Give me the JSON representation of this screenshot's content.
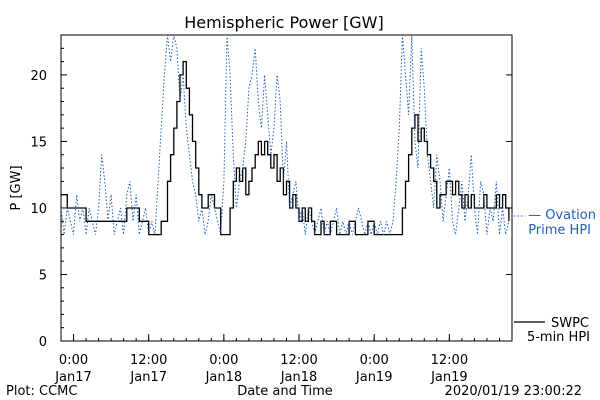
{
  "chart_data": {
    "type": "line",
    "title": "Hemispheric Power [GW]",
    "xlabel": "Date and Time",
    "ylabel": "P [GW]",
    "ylim": [
      0,
      23
    ],
    "yticks": [
      0,
      5,
      10,
      15,
      20
    ],
    "xlim_hours": [
      -2,
      70
    ],
    "xticks": [
      {
        "hour": 0,
        "line1": "0:00",
        "line2": "Jan17"
      },
      {
        "hour": 12,
        "line1": "12:00",
        "line2": "Jan17"
      },
      {
        "hour": 24,
        "line1": "0:00",
        "line2": "Jan18"
      },
      {
        "hour": 36,
        "line1": "12:00",
        "line2": "Jan18"
      },
      {
        "hour": 48,
        "line1": "0:00",
        "line2": "Jan19"
      },
      {
        "hour": 60,
        "line1": "12:00",
        "line2": "Jan19"
      }
    ],
    "grid": false,
    "series": [
      {
        "name": "SWPC 5-min HPI",
        "legend_line1": "SWPC",
        "legend_line2": "5-min HPI",
        "color": "#000000",
        "style": "solid",
        "points": [
          [
            -2,
            11
          ],
          [
            -1.3,
            11
          ],
          [
            -1,
            10
          ],
          [
            0,
            10
          ],
          [
            1,
            10
          ],
          [
            2,
            9
          ],
          [
            3,
            9
          ],
          [
            4,
            9
          ],
          [
            5,
            9
          ],
          [
            6,
            9
          ],
          [
            7,
            9
          ],
          [
            8,
            9
          ],
          [
            8.5,
            10
          ],
          [
            9.5,
            10
          ],
          [
            10.5,
            9
          ],
          [
            11,
            9
          ],
          [
            12,
            8
          ],
          [
            13.5,
            8
          ],
          [
            14,
            9
          ],
          [
            15,
            12
          ],
          [
            15.5,
            14
          ],
          [
            16,
            16
          ],
          [
            16.5,
            18
          ],
          [
            17,
            20
          ],
          [
            17.5,
            21
          ],
          [
            18,
            19
          ],
          [
            18.5,
            17
          ],
          [
            19,
            15
          ],
          [
            19.5,
            13
          ],
          [
            20,
            11
          ],
          [
            20.5,
            10
          ],
          [
            21,
            10
          ],
          [
            21.5,
            11
          ],
          [
            22.5,
            10
          ],
          [
            23.5,
            8
          ],
          [
            24,
            8
          ],
          [
            24.5,
            8
          ],
          [
            25,
            10
          ],
          [
            25.5,
            12
          ],
          [
            26,
            13
          ],
          [
            26.5,
            12
          ],
          [
            27,
            13
          ],
          [
            27.5,
            11
          ],
          [
            28,
            12
          ],
          [
            28.5,
            13
          ],
          [
            29,
            14
          ],
          [
            29.5,
            15
          ],
          [
            30,
            14
          ],
          [
            30.5,
            15
          ],
          [
            31,
            14
          ],
          [
            31.5,
            13
          ],
          [
            32,
            14
          ],
          [
            32.5,
            12
          ],
          [
            33,
            13
          ],
          [
            33.5,
            11
          ],
          [
            34,
            12
          ],
          [
            34.5,
            10
          ],
          [
            35,
            11
          ],
          [
            35.5,
            10
          ],
          [
            36,
            9
          ],
          [
            36.5,
            10
          ],
          [
            37,
            9
          ],
          [
            37.5,
            10
          ],
          [
            38,
            9
          ],
          [
            38.5,
            8
          ],
          [
            39,
            8
          ],
          [
            39.5,
            9
          ],
          [
            40,
            8
          ],
          [
            41,
            9
          ],
          [
            41.5,
            9
          ],
          [
            42,
            8
          ],
          [
            43,
            8
          ],
          [
            44,
            9
          ],
          [
            45,
            8
          ],
          [
            46,
            8
          ],
          [
            47,
            9
          ],
          [
            48,
            8
          ],
          [
            49,
            8
          ],
          [
            50,
            8
          ],
          [
            51,
            8
          ],
          [
            52,
            8
          ],
          [
            52.5,
            10
          ],
          [
            53,
            12
          ],
          [
            53.5,
            14
          ],
          [
            54,
            16
          ],
          [
            54.5,
            17
          ],
          [
            55,
            15
          ],
          [
            55.5,
            16
          ],
          [
            56,
            15
          ],
          [
            56.5,
            14
          ],
          [
            57,
            13
          ],
          [
            57.5,
            12
          ],
          [
            58,
            10
          ],
          [
            58.5,
            11
          ],
          [
            59,
            11
          ],
          [
            59.5,
            12
          ],
          [
            60,
            12
          ],
          [
            60.5,
            11
          ],
          [
            61,
            12
          ],
          [
            61.5,
            11
          ],
          [
            62,
            10
          ],
          [
            62.5,
            11
          ],
          [
            63,
            10
          ],
          [
            63.5,
            11
          ],
          [
            64,
            10
          ],
          [
            65,
            10
          ],
          [
            65.5,
            11
          ],
          [
            66,
            10
          ],
          [
            66.5,
            10
          ],
          [
            67,
            10
          ],
          [
            67.5,
            11
          ],
          [
            68,
            10
          ],
          [
            68.5,
            11
          ],
          [
            69,
            10
          ],
          [
            69.5,
            9
          ]
        ]
      },
      {
        "name": "Ovation Prime HPI",
        "legend_line1": "— Ovation",
        "legend_line2": "Prime HPI",
        "color": "#1f5fbf",
        "style": "dotted",
        "points": [
          [
            -2,
            10
          ],
          [
            -1.5,
            8
          ],
          [
            -1,
            10
          ],
          [
            -0.5,
            9
          ],
          [
            0,
            8
          ],
          [
            0.5,
            11
          ],
          [
            1,
            9
          ],
          [
            1.5,
            10
          ],
          [
            2,
            8
          ],
          [
            2.5,
            10
          ],
          [
            3,
            9
          ],
          [
            3.5,
            8
          ],
          [
            4,
            10
          ],
          [
            4.5,
            14
          ],
          [
            5,
            12
          ],
          [
            5.5,
            9
          ],
          [
            6,
            11
          ],
          [
            6.5,
            8
          ],
          [
            7,
            9
          ],
          [
            7.5,
            10
          ],
          [
            8,
            8
          ],
          [
            8.5,
            11
          ],
          [
            9,
            12
          ],
          [
            9.5,
            9
          ],
          [
            10,
            11
          ],
          [
            10.5,
            8
          ],
          [
            11,
            9
          ],
          [
            11.5,
            10
          ],
          [
            12,
            8
          ],
          [
            12.5,
            9
          ],
          [
            13,
            8
          ],
          [
            13.5,
            12
          ],
          [
            14,
            16
          ],
          [
            14.5,
            20
          ],
          [
            15,
            23
          ],
          [
            15.5,
            21
          ],
          [
            16,
            23
          ],
          [
            16.5,
            22
          ],
          [
            17,
            18
          ],
          [
            17.5,
            20
          ],
          [
            18,
            16
          ],
          [
            18.5,
            14
          ],
          [
            19,
            12
          ],
          [
            19.5,
            11
          ],
          [
            20,
            9
          ],
          [
            20.5,
            10
          ],
          [
            21,
            8
          ],
          [
            21.5,
            9
          ],
          [
            22,
            11
          ],
          [
            22.5,
            10
          ],
          [
            23,
            9
          ],
          [
            23.5,
            8
          ],
          [
            24,
            12
          ],
          [
            24.5,
            23
          ],
          [
            25,
            20
          ],
          [
            25.5,
            14
          ],
          [
            26,
            10
          ],
          [
            26.5,
            12
          ],
          [
            27,
            13
          ],
          [
            27.5,
            15
          ],
          [
            28,
            19
          ],
          [
            28.5,
            20
          ],
          [
            29,
            22
          ],
          [
            29.5,
            18
          ],
          [
            30,
            16
          ],
          [
            30.5,
            20
          ],
          [
            31,
            17
          ],
          [
            31.5,
            14
          ],
          [
            32,
            16
          ],
          [
            32.5,
            20
          ],
          [
            33,
            18
          ],
          [
            33.5,
            12
          ],
          [
            34,
            15
          ],
          [
            34.5,
            10
          ],
          [
            35,
            11
          ],
          [
            35.5,
            12
          ],
          [
            36,
            9
          ],
          [
            36.5,
            10
          ],
          [
            37,
            8
          ],
          [
            37.5,
            10
          ],
          [
            38,
            9
          ],
          [
            38.5,
            8
          ],
          [
            39,
            9
          ],
          [
            39.5,
            10
          ],
          [
            40,
            8
          ],
          [
            40.5,
            9
          ],
          [
            41,
            8
          ],
          [
            41.5,
            9
          ],
          [
            42,
            10
          ],
          [
            42.5,
            8
          ],
          [
            43,
            9
          ],
          [
            43.5,
            8
          ],
          [
            44,
            9
          ],
          [
            44.5,
            8
          ],
          [
            45,
            9
          ],
          [
            45.5,
            10
          ],
          [
            46,
            9
          ],
          [
            46.5,
            8
          ],
          [
            47,
            9
          ],
          [
            47.5,
            8
          ],
          [
            48,
            9
          ],
          [
            48.5,
            8
          ],
          [
            49,
            9
          ],
          [
            49.5,
            8
          ],
          [
            50,
            9
          ],
          [
            50.5,
            8
          ],
          [
            51,
            9
          ],
          [
            51.5,
            12
          ],
          [
            52,
            16
          ],
          [
            52.5,
            23
          ],
          [
            53,
            20
          ],
          [
            53.5,
            17
          ],
          [
            54,
            23
          ],
          [
            54.5,
            15
          ],
          [
            55,
            13
          ],
          [
            55.5,
            22
          ],
          [
            56,
            19
          ],
          [
            56.5,
            14
          ],
          [
            57,
            12
          ],
          [
            57.5,
            10
          ],
          [
            58,
            14
          ],
          [
            58.5,
            12
          ],
          [
            59,
            9
          ],
          [
            59.5,
            11
          ],
          [
            60,
            13
          ],
          [
            60.5,
            9
          ],
          [
            61,
            8
          ],
          [
            61.5,
            10
          ],
          [
            62,
            12
          ],
          [
            62.5,
            9
          ],
          [
            63,
            11
          ],
          [
            63.5,
            14
          ],
          [
            64,
            10
          ],
          [
            64.5,
            8
          ],
          [
            65,
            12
          ],
          [
            65.5,
            11
          ],
          [
            66,
            8
          ],
          [
            66.5,
            10
          ],
          [
            67,
            9
          ],
          [
            67.5,
            12
          ],
          [
            68,
            8
          ],
          [
            68.5,
            10
          ],
          [
            69,
            8
          ],
          [
            69.5,
            9
          ]
        ]
      }
    ]
  },
  "footer": {
    "left_label": "Plot: CCMC",
    "timestamp": "2020/01/19 23:00:22"
  }
}
